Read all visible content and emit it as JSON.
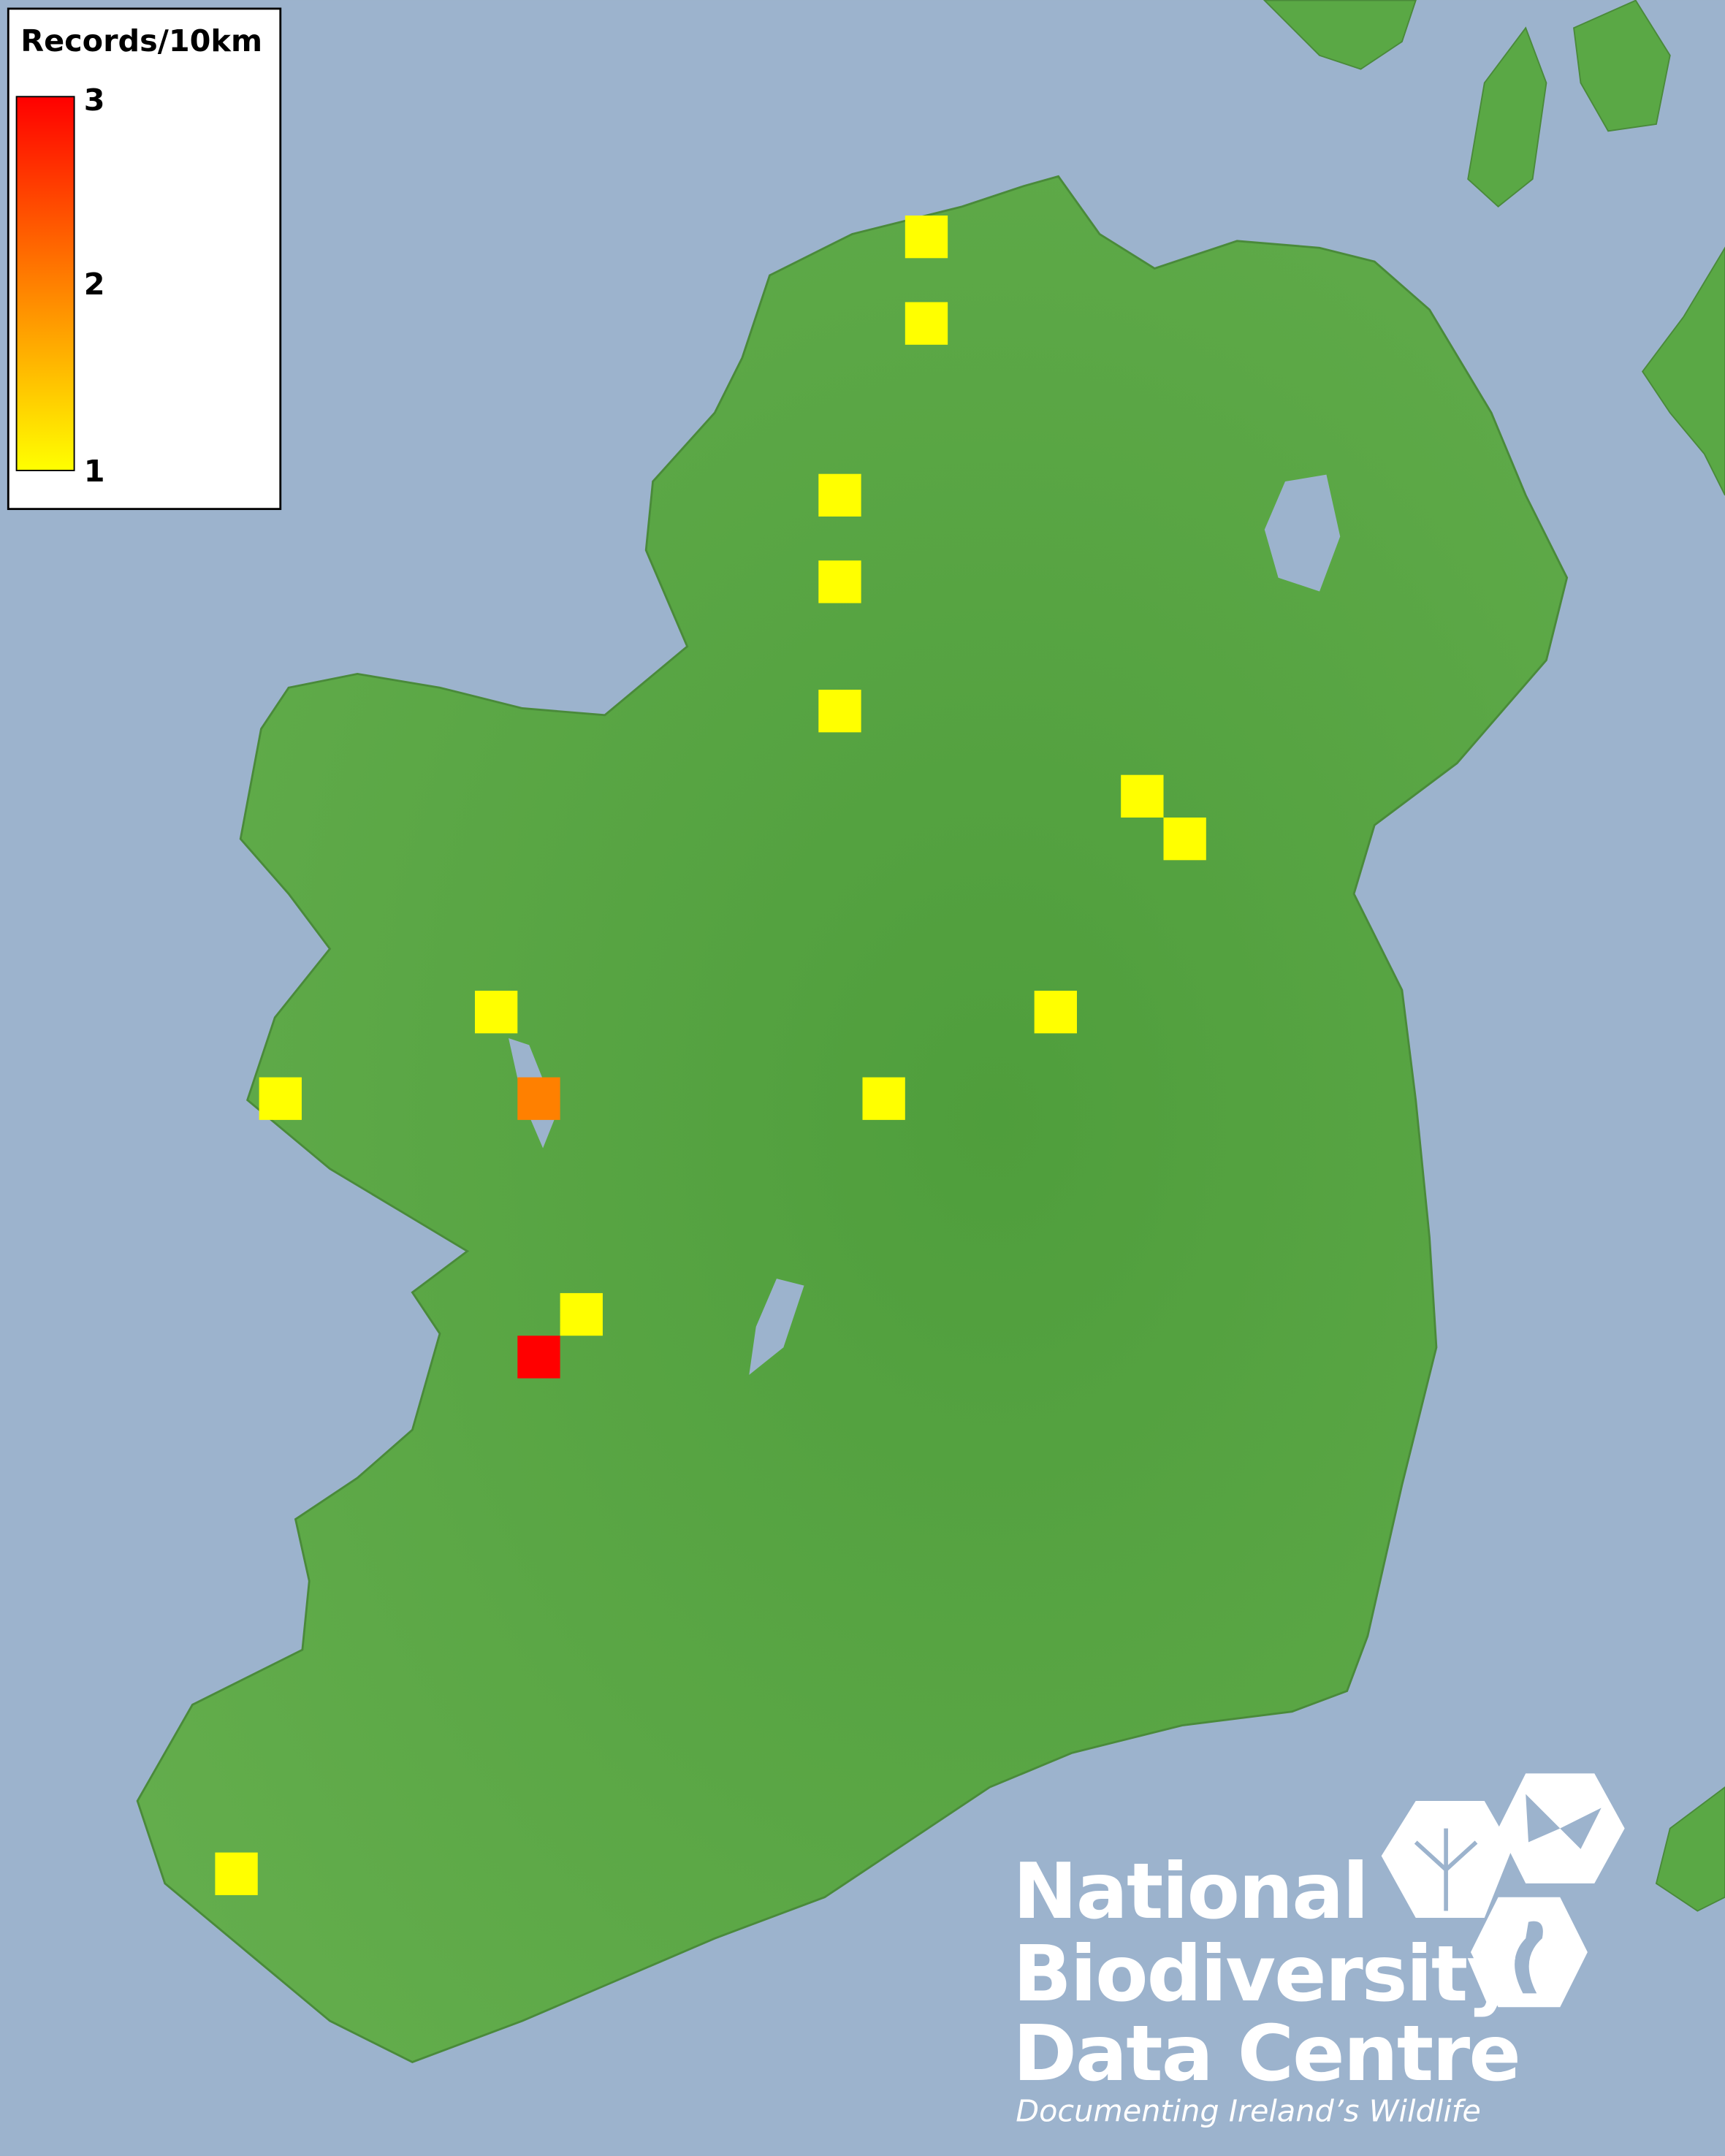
{
  "legend": {
    "title": "Records/10km",
    "ticks": [
      "3",
      "2",
      "1"
    ],
    "color_max": "#ff0000",
    "color_mid": "#ff8000",
    "color_min": "#ffff00"
  },
  "map": {
    "sea_color": "#9cb3cd",
    "land_color": "#5aa845",
    "record_counts": [
      1,
      1,
      1,
      1,
      1,
      1,
      1,
      1,
      1,
      1,
      2,
      1,
      1,
      3,
      1
    ]
  },
  "logo": {
    "line1": "National",
    "line2": "Biodiversity",
    "line3": "Data Centre",
    "tagline": "Documenting Ireland’s Wildlife"
  }
}
